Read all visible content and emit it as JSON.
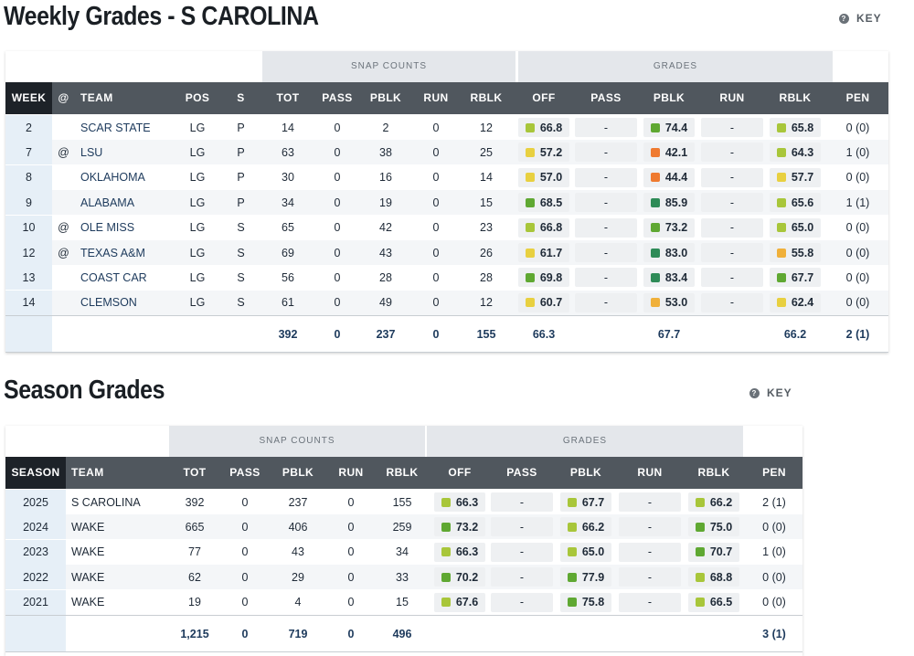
{
  "colors": {
    "elite": "#2e8b57",
    "high": "#5fa832",
    "good": "#a8c63a",
    "average": "#e8d040",
    "below": "#f0b03a",
    "poor": "#ef7a30"
  },
  "weekly": {
    "title": "Weekly Grades - S CAROLINA",
    "key_label": "KEY",
    "group_snap": "SNAP COUNTS",
    "group_grades": "GRADES",
    "headers": [
      "WEEK",
      "@",
      "TEAM",
      "POS",
      "S",
      "TOT",
      "PASS",
      "PBLK",
      "RUN",
      "RBLK",
      "OFF",
      "PASS",
      "PBLK",
      "RUN",
      "RBLK",
      "PEN"
    ],
    "rows": [
      {
        "week": "2",
        "at": "",
        "team": "SCAR STATE",
        "pos": "LG",
        "s": "P",
        "tot": "14",
        "pass": "0",
        "pblk": "2",
        "run": "0",
        "rblk": "12",
        "g_off": "66.8",
        "g_off_c": "good",
        "g_pass": "-",
        "g_pblk": "74.4",
        "g_pblk_c": "high",
        "g_run": "-",
        "g_rblk": "65.8",
        "g_rblk_c": "good",
        "pen": "0 (0)"
      },
      {
        "week": "7",
        "at": "@",
        "team": "LSU",
        "pos": "LG",
        "s": "P",
        "tot": "63",
        "pass": "0",
        "pblk": "38",
        "run": "0",
        "rblk": "25",
        "g_off": "57.2",
        "g_off_c": "average",
        "g_pass": "-",
        "g_pblk": "42.1",
        "g_pblk_c": "poor",
        "g_run": "-",
        "g_rblk": "64.3",
        "g_rblk_c": "good",
        "pen": "1 (0)"
      },
      {
        "week": "8",
        "at": "",
        "team": "OKLAHOMA",
        "pos": "LG",
        "s": "P",
        "tot": "30",
        "pass": "0",
        "pblk": "16",
        "run": "0",
        "rblk": "14",
        "g_off": "57.0",
        "g_off_c": "average",
        "g_pass": "-",
        "g_pblk": "44.4",
        "g_pblk_c": "poor",
        "g_run": "-",
        "g_rblk": "57.7",
        "g_rblk_c": "average",
        "pen": "0 (0)"
      },
      {
        "week": "9",
        "at": "",
        "team": "ALABAMA",
        "pos": "LG",
        "s": "P",
        "tot": "34",
        "pass": "0",
        "pblk": "19",
        "run": "0",
        "rblk": "15",
        "g_off": "68.5",
        "g_off_c": "high",
        "g_pass": "-",
        "g_pblk": "85.9",
        "g_pblk_c": "elite",
        "g_run": "-",
        "g_rblk": "65.6",
        "g_rblk_c": "good",
        "pen": "1 (1)"
      },
      {
        "week": "10",
        "at": "@",
        "team": "OLE MISS",
        "pos": "LG",
        "s": "S",
        "tot": "65",
        "pass": "0",
        "pblk": "42",
        "run": "0",
        "rblk": "23",
        "g_off": "66.8",
        "g_off_c": "good",
        "g_pass": "-",
        "g_pblk": "73.2",
        "g_pblk_c": "high",
        "g_run": "-",
        "g_rblk": "65.0",
        "g_rblk_c": "good",
        "pen": "0 (0)"
      },
      {
        "week": "12",
        "at": "@",
        "team": "TEXAS A&M",
        "pos": "LG",
        "s": "S",
        "tot": "69",
        "pass": "0",
        "pblk": "43",
        "run": "0",
        "rblk": "26",
        "g_off": "61.7",
        "g_off_c": "average",
        "g_pass": "-",
        "g_pblk": "83.0",
        "g_pblk_c": "elite",
        "g_run": "-",
        "g_rblk": "55.8",
        "g_rblk_c": "below",
        "pen": "0 (0)"
      },
      {
        "week": "13",
        "at": "",
        "team": "COAST CAR",
        "pos": "LG",
        "s": "S",
        "tot": "56",
        "pass": "0",
        "pblk": "28",
        "run": "0",
        "rblk": "28",
        "g_off": "69.8",
        "g_off_c": "high",
        "g_pass": "-",
        "g_pblk": "83.4",
        "g_pblk_c": "elite",
        "g_run": "-",
        "g_rblk": "67.7",
        "g_rblk_c": "high",
        "pen": "0 (0)"
      },
      {
        "week": "14",
        "at": "",
        "team": "CLEMSON",
        "pos": "LG",
        "s": "S",
        "tot": "61",
        "pass": "0",
        "pblk": "49",
        "run": "0",
        "rblk": "12",
        "g_off": "60.7",
        "g_off_c": "average",
        "g_pass": "-",
        "g_pblk": "53.0",
        "g_pblk_c": "below",
        "g_run": "-",
        "g_rblk": "62.4",
        "g_rblk_c": "average",
        "pen": "0 (0)"
      }
    ],
    "totals": {
      "tot": "392",
      "pass": "0",
      "pblk": "237",
      "run": "0",
      "rblk": "155",
      "g_off": "66.3",
      "g_pblk": "67.7",
      "g_rblk": "66.2",
      "pen": "2 (1)"
    }
  },
  "season": {
    "title": "Season Grades",
    "key_label": "KEY",
    "group_snap": "SNAP COUNTS",
    "group_grades": "GRADES",
    "headers": [
      "SEASON",
      "TEAM",
      "TOT",
      "PASS",
      "PBLK",
      "RUN",
      "RBLK",
      "OFF",
      "PASS",
      "PBLK",
      "RUN",
      "RBLK",
      "PEN"
    ],
    "rows": [
      {
        "season": "2025",
        "team": "S CAROLINA",
        "tot": "392",
        "pass": "0",
        "pblk": "237",
        "run": "0",
        "rblk": "155",
        "g_off": "66.3",
        "g_off_c": "good",
        "g_pass": "-",
        "g_pblk": "67.7",
        "g_pblk_c": "good",
        "g_run": "-",
        "g_rblk": "66.2",
        "g_rblk_c": "good",
        "pen": "2 (1)"
      },
      {
        "season": "2024",
        "team": "WAKE",
        "tot": "665",
        "pass": "0",
        "pblk": "406",
        "run": "0",
        "rblk": "259",
        "g_off": "73.2",
        "g_off_c": "high",
        "g_pass": "-",
        "g_pblk": "66.2",
        "g_pblk_c": "good",
        "g_run": "-",
        "g_rblk": "75.0",
        "g_rblk_c": "high",
        "pen": "0 (0)"
      },
      {
        "season": "2023",
        "team": "WAKE",
        "tot": "77",
        "pass": "0",
        "pblk": "43",
        "run": "0",
        "rblk": "34",
        "g_off": "66.3",
        "g_off_c": "good",
        "g_pass": "-",
        "g_pblk": "65.0",
        "g_pblk_c": "good",
        "g_run": "-",
        "g_rblk": "70.7",
        "g_rblk_c": "high",
        "pen": "1 (0)"
      },
      {
        "season": "2022",
        "team": "WAKE",
        "tot": "62",
        "pass": "0",
        "pblk": "29",
        "run": "0",
        "rblk": "33",
        "g_off": "70.2",
        "g_off_c": "high",
        "g_pass": "-",
        "g_pblk": "77.9",
        "g_pblk_c": "high",
        "g_run": "-",
        "g_rblk": "68.8",
        "g_rblk_c": "good",
        "pen": "0 (0)"
      },
      {
        "season": "2021",
        "team": "WAKE",
        "tot": "19",
        "pass": "0",
        "pblk": "4",
        "run": "0",
        "rblk": "15",
        "g_off": "67.6",
        "g_off_c": "good",
        "g_pass": "-",
        "g_pblk": "75.8",
        "g_pblk_c": "high",
        "g_run": "-",
        "g_rblk": "66.5",
        "g_rblk_c": "good",
        "pen": "0 (0)"
      }
    ],
    "totals": {
      "tot": "1,215",
      "pass": "0",
      "pblk": "719",
      "run": "0",
      "rblk": "496",
      "pen": "3 (1)"
    }
  }
}
